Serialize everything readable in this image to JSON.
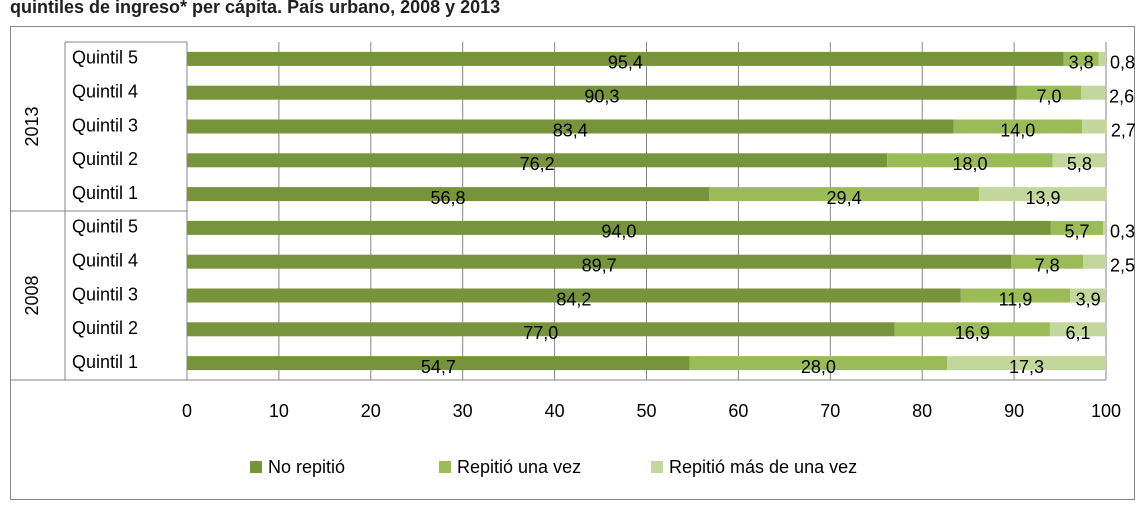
{
  "chart_data": {
    "type": "stacked_barh",
    "title": "quintiles de ingreso* per cápita. País urbano, 2008 y 2013",
    "groups": [
      "2013",
      "2008"
    ],
    "categories": [
      "Quintil 5",
      "Quintil 4",
      "Quintil 3",
      "Quintil 2",
      "Quintil 1",
      "Quintil 5",
      "Quintil 4",
      "Quintil 3",
      "Quintil 2",
      "Quintil 1"
    ],
    "series": [
      {
        "name": "No repitió",
        "color": "#77933c",
        "values": [
          95.4,
          90.3,
          83.4,
          76.2,
          56.8,
          94.0,
          89.7,
          84.2,
          77.0,
          54.7
        ],
        "value_labels": [
          "95,4",
          "90,3",
          "83,4",
          "76,2",
          "56,8",
          "94,0",
          "89,7",
          "84,2",
          "77,0",
          "54,7"
        ]
      },
      {
        "name": "Repitió una vez",
        "color": "#9bbb59",
        "values": [
          3.8,
          7.0,
          14.0,
          18.0,
          29.4,
          5.7,
          7.8,
          11.9,
          16.9,
          28.0
        ],
        "value_labels": [
          "3,8",
          "7,0",
          "14,0",
          "18,0",
          "29,4",
          "5,7",
          "7,8",
          "11,9",
          "16,9",
          "28,0"
        ]
      },
      {
        "name": "Repitió más de una vez",
        "color": "#c3d69b",
        "values": [
          0.8,
          2.6,
          2.7,
          5.8,
          13.9,
          0.3,
          2.5,
          3.9,
          6.1,
          17.3
        ],
        "value_labels": [
          "0,8",
          "2,6",
          "2,7",
          "5,8",
          "13,9",
          "0,3",
          "2,5",
          "3,9",
          "6,1",
          "17,3"
        ]
      }
    ],
    "xlim": [
      0,
      100
    ],
    "xticks": [
      0,
      10,
      20,
      30,
      40,
      50,
      60,
      70,
      80,
      90,
      100
    ],
    "grid": true,
    "legend": "bottom"
  }
}
